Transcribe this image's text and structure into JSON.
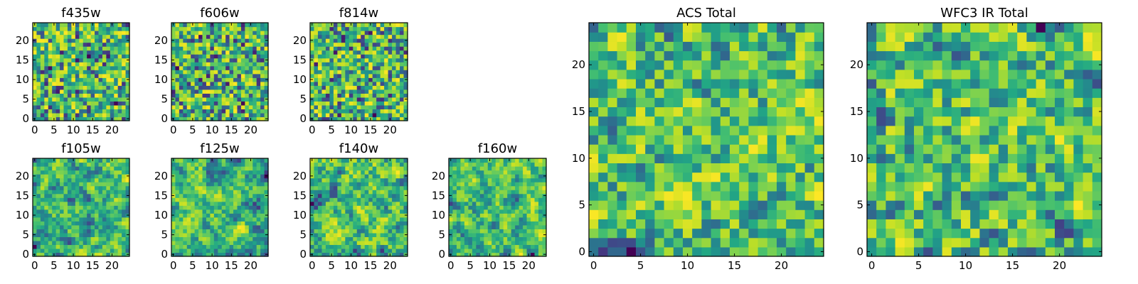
{
  "figure": {
    "colormap": "viridis",
    "background": "#ffffff"
  },
  "chart_data": [
    {
      "type": "heatmap",
      "title": "f435w",
      "x_ticks": [
        "0",
        "5",
        "10",
        "15",
        "20"
      ],
      "y_ticks": [
        "0",
        "5",
        "10",
        "15",
        "20"
      ],
      "grid_size": [
        25,
        25
      ],
      "xlim": [
        -0.5,
        24.5
      ],
      "ylim": [
        -0.5,
        24.5
      ],
      "texture": "fine",
      "seed": 11
    },
    {
      "type": "heatmap",
      "title": "f606w",
      "x_ticks": [
        "0",
        "5",
        "10",
        "15",
        "20"
      ],
      "y_ticks": [
        "0",
        "5",
        "10",
        "15",
        "20"
      ],
      "grid_size": [
        25,
        25
      ],
      "xlim": [
        -0.5,
        24.5
      ],
      "ylim": [
        -0.5,
        24.5
      ],
      "texture": "fine",
      "seed": 23
    },
    {
      "type": "heatmap",
      "title": "f814w",
      "x_ticks": [
        "0",
        "5",
        "10",
        "15",
        "20"
      ],
      "y_ticks": [
        "0",
        "5",
        "10",
        "15",
        "20"
      ],
      "grid_size": [
        25,
        25
      ],
      "xlim": [
        -0.5,
        24.5
      ],
      "ylim": [
        -0.5,
        24.5
      ],
      "texture": "fine",
      "seed": 37
    },
    {
      "type": "heatmap",
      "title": "f105w",
      "x_ticks": [
        "0",
        "5",
        "10",
        "15",
        "20"
      ],
      "y_ticks": [
        "0",
        "5",
        "10",
        "15",
        "20"
      ],
      "grid_size": [
        25,
        25
      ],
      "xlim": [
        -0.5,
        24.5
      ],
      "ylim": [
        -0.5,
        24.5
      ],
      "texture": "smooth",
      "seed": 41
    },
    {
      "type": "heatmap",
      "title": "f125w",
      "x_ticks": [
        "0",
        "5",
        "10",
        "15",
        "20"
      ],
      "y_ticks": [
        "0",
        "5",
        "10",
        "15",
        "20"
      ],
      "grid_size": [
        25,
        25
      ],
      "xlim": [
        -0.5,
        24.5
      ],
      "ylim": [
        -0.5,
        24.5
      ],
      "texture": "smooth",
      "seed": 53
    },
    {
      "type": "heatmap",
      "title": "f140w",
      "x_ticks": [
        "0",
        "5",
        "10",
        "15",
        "20"
      ],
      "y_ticks": [
        "0",
        "5",
        "10",
        "15",
        "20"
      ],
      "grid_size": [
        25,
        25
      ],
      "xlim": [
        -0.5,
        24.5
      ],
      "ylim": [
        -0.5,
        24.5
      ],
      "texture": "smooth",
      "seed": 67
    },
    {
      "type": "heatmap",
      "title": "f160w",
      "x_ticks": [
        "0",
        "5",
        "10",
        "15",
        "20"
      ],
      "y_ticks": [
        "0",
        "5",
        "10",
        "15",
        "20"
      ],
      "grid_size": [
        25,
        25
      ],
      "xlim": [
        -0.5,
        24.5
      ],
      "ylim": [
        -0.5,
        24.5
      ],
      "texture": "smooth",
      "seed": 79
    },
    {
      "type": "heatmap",
      "title": "ACS Total",
      "x_ticks": [
        "0",
        "5",
        "10",
        "15",
        "20"
      ],
      "y_ticks": [
        "0",
        "5",
        "10",
        "15",
        "20"
      ],
      "grid_size": [
        25,
        25
      ],
      "xlim": [
        -0.5,
        24.5
      ],
      "ylim": [
        -0.5,
        24.5
      ],
      "texture": "blocky",
      "seed": 97
    },
    {
      "type": "heatmap",
      "title": "WFC3 IR Total",
      "x_ticks": [
        "0",
        "5",
        "10",
        "15",
        "20"
      ],
      "y_ticks": [
        "0",
        "5",
        "10",
        "15",
        "20"
      ],
      "grid_size": [
        25,
        25
      ],
      "xlim": [
        -0.5,
        24.5
      ],
      "ylim": [
        -0.5,
        24.5
      ],
      "texture": "blocky",
      "seed": 113
    }
  ]
}
